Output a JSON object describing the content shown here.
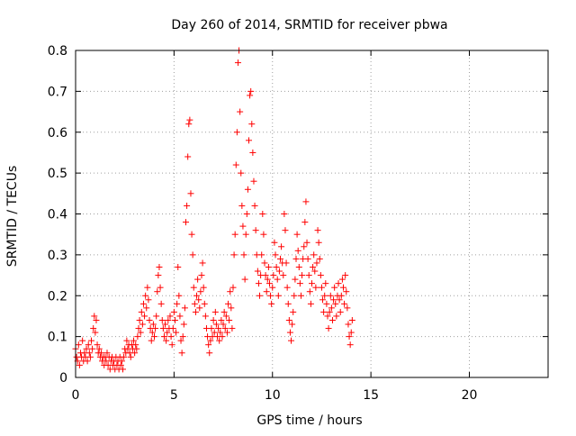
{
  "chart_data": {
    "type": "scatter",
    "title": "Day 260 of 2014, SRMTID for receiver pbwa",
    "xlabel": "GPS time / hours",
    "ylabel": "SRMTID / TECUs",
    "xlim": [
      0,
      24
    ],
    "ylim": [
      0,
      0.8
    ],
    "xticks": [
      0,
      5,
      10,
      15,
      20
    ],
    "xtick_labels": [
      "0",
      "5",
      "10",
      "15",
      "20"
    ],
    "yticks": [
      0,
      0.1,
      0.2,
      0.3,
      0.4,
      0.5,
      0.6,
      0.7,
      0.8
    ],
    "ytick_labels": [
      "0",
      "0.1",
      "0.2",
      "0.3",
      "0.4",
      "0.5",
      "0.6",
      "0.7",
      "0.8"
    ],
    "grid": true,
    "marker": "+",
    "marker_color": "#ff0000",
    "series": [
      {
        "name": "pbwa",
        "points": [
          [
            0.0,
            0.07
          ],
          [
            0.05,
            0.05
          ],
          [
            0.1,
            0.04
          ],
          [
            0.15,
            0.08
          ],
          [
            0.2,
            0.03
          ],
          [
            0.25,
            0.06
          ],
          [
            0.3,
            0.05
          ],
          [
            0.35,
            0.09
          ],
          [
            0.4,
            0.04
          ],
          [
            0.45,
            0.06
          ],
          [
            0.5,
            0.05
          ],
          [
            0.55,
            0.07
          ],
          [
            0.6,
            0.04
          ],
          [
            0.65,
            0.08
          ],
          [
            0.7,
            0.06
          ],
          [
            0.75,
            0.05
          ],
          [
            0.8,
            0.09
          ],
          [
            0.85,
            0.07
          ],
          [
            0.9,
            0.12
          ],
          [
            0.95,
            0.15
          ],
          [
            1.0,
            0.11
          ],
          [
            1.05,
            0.14
          ],
          [
            1.1,
            0.08
          ],
          [
            1.15,
            0.06
          ],
          [
            1.2,
            0.07
          ],
          [
            1.25,
            0.05
          ],
          [
            1.3,
            0.06
          ],
          [
            1.35,
            0.04
          ],
          [
            1.4,
            0.05
          ],
          [
            1.45,
            0.03
          ],
          [
            1.5,
            0.05
          ],
          [
            1.55,
            0.04
          ],
          [
            1.6,
            0.06
          ],
          [
            1.65,
            0.03
          ],
          [
            1.7,
            0.05
          ],
          [
            1.75,
            0.02
          ],
          [
            1.8,
            0.04
          ],
          [
            1.85,
            0.05
          ],
          [
            1.9,
            0.03
          ],
          [
            1.95,
            0.04
          ],
          [
            2.0,
            0.02
          ],
          [
            2.05,
            0.05
          ],
          [
            2.1,
            0.03
          ],
          [
            2.15,
            0.04
          ],
          [
            2.2,
            0.02
          ],
          [
            2.25,
            0.05
          ],
          [
            2.3,
            0.03
          ],
          [
            2.35,
            0.04
          ],
          [
            2.4,
            0.02
          ],
          [
            2.45,
            0.05
          ],
          [
            2.5,
            0.07
          ],
          [
            2.55,
            0.06
          ],
          [
            2.6,
            0.09
          ],
          [
            2.65,
            0.07
          ],
          [
            2.7,
            0.08
          ],
          [
            2.75,
            0.06
          ],
          [
            2.8,
            0.05
          ],
          [
            2.85,
            0.08
          ],
          [
            2.9,
            0.07
          ],
          [
            2.95,
            0.09
          ],
          [
            3.0,
            0.06
          ],
          [
            3.05,
            0.08
          ],
          [
            3.1,
            0.07
          ],
          [
            3.15,
            0.1
          ],
          [
            3.2,
            0.12
          ],
          [
            3.25,
            0.14
          ],
          [
            3.3,
            0.11
          ],
          [
            3.35,
            0.16
          ],
          [
            3.4,
            0.13
          ],
          [
            3.45,
            0.18
          ],
          [
            3.5,
            0.15
          ],
          [
            3.55,
            0.2
          ],
          [
            3.6,
            0.17
          ],
          [
            3.65,
            0.22
          ],
          [
            3.7,
            0.19
          ],
          [
            3.75,
            0.14
          ],
          [
            3.8,
            0.12
          ],
          [
            3.85,
            0.09
          ],
          [
            3.9,
            0.11
          ],
          [
            3.95,
            0.13
          ],
          [
            4.0,
            0.1
          ],
          [
            4.05,
            0.12
          ],
          [
            4.1,
            0.15
          ],
          [
            4.15,
            0.21
          ],
          [
            4.2,
            0.25
          ],
          [
            4.25,
            0.27
          ],
          [
            4.3,
            0.22
          ],
          [
            4.35,
            0.18
          ],
          [
            4.4,
            0.14
          ],
          [
            4.45,
            0.12
          ],
          [
            4.5,
            0.1
          ],
          [
            4.55,
            0.13
          ],
          [
            4.6,
            0.09
          ],
          [
            4.65,
            0.11
          ],
          [
            4.7,
            0.14
          ],
          [
            4.75,
            0.12
          ],
          [
            4.8,
            0.15
          ],
          [
            4.85,
            0.1
          ],
          [
            4.9,
            0.08
          ],
          [
            4.95,
            0.12
          ],
          [
            5.0,
            0.16
          ],
          [
            5.05,
            0.14
          ],
          [
            5.1,
            0.11
          ],
          [
            5.15,
            0.18
          ],
          [
            5.2,
            0.27
          ],
          [
            5.25,
            0.2
          ],
          [
            5.3,
            0.15
          ],
          [
            5.35,
            0.09
          ],
          [
            5.4,
            0.06
          ],
          [
            5.45,
            0.1
          ],
          [
            5.5,
            0.13
          ],
          [
            5.55,
            0.17
          ],
          [
            5.6,
            0.38
          ],
          [
            5.65,
            0.42
          ],
          [
            5.7,
            0.54
          ],
          [
            5.75,
            0.62
          ],
          [
            5.8,
            0.63
          ],
          [
            5.85,
            0.45
          ],
          [
            5.9,
            0.35
          ],
          [
            5.95,
            0.3
          ],
          [
            6.0,
            0.22
          ],
          [
            6.05,
            0.18
          ],
          [
            6.1,
            0.16
          ],
          [
            6.15,
            0.2
          ],
          [
            6.2,
            0.24
          ],
          [
            6.25,
            0.19
          ],
          [
            6.3,
            0.17
          ],
          [
            6.35,
            0.21
          ],
          [
            6.4,
            0.25
          ],
          [
            6.45,
            0.28
          ],
          [
            6.5,
            0.22
          ],
          [
            6.55,
            0.18
          ],
          [
            6.6,
            0.15
          ],
          [
            6.65,
            0.12
          ],
          [
            6.7,
            0.1
          ],
          [
            6.75,
            0.08
          ],
          [
            6.8,
            0.06
          ],
          [
            6.85,
            0.09
          ],
          [
            6.9,
            0.12
          ],
          [
            6.95,
            0.1
          ],
          [
            7.0,
            0.14
          ],
          [
            7.05,
            0.11
          ],
          [
            7.1,
            0.16
          ],
          [
            7.15,
            0.13
          ],
          [
            7.2,
            0.1
          ],
          [
            7.25,
            0.12
          ],
          [
            7.3,
            0.09
          ],
          [
            7.35,
            0.11
          ],
          [
            7.4,
            0.14
          ],
          [
            7.45,
            0.1
          ],
          [
            7.5,
            0.13
          ],
          [
            7.55,
            0.16
          ],
          [
            7.6,
            0.12
          ],
          [
            7.65,
            0.15
          ],
          [
            7.7,
            0.11
          ],
          [
            7.75,
            0.18
          ],
          [
            7.8,
            0.14
          ],
          [
            7.85,
            0.21
          ],
          [
            7.9,
            0.17
          ],
          [
            7.95,
            0.12
          ],
          [
            8.0,
            0.22
          ],
          [
            8.05,
            0.3
          ],
          [
            8.1,
            0.35
          ],
          [
            8.15,
            0.52
          ],
          [
            8.2,
            0.6
          ],
          [
            8.25,
            0.77
          ],
          [
            8.3,
            0.8
          ],
          [
            8.35,
            0.65
          ],
          [
            8.4,
            0.5
          ],
          [
            8.45,
            0.42
          ],
          [
            8.5,
            0.37
          ],
          [
            8.55,
            0.3
          ],
          [
            8.6,
            0.24
          ],
          [
            8.65,
            0.35
          ],
          [
            8.7,
            0.4
          ],
          [
            8.75,
            0.46
          ],
          [
            8.8,
            0.58
          ],
          [
            8.85,
            0.69
          ],
          [
            8.9,
            0.7
          ],
          [
            8.95,
            0.62
          ],
          [
            9.0,
            0.55
          ],
          [
            9.05,
            0.48
          ],
          [
            9.1,
            0.42
          ],
          [
            9.15,
            0.36
          ],
          [
            9.2,
            0.3
          ],
          [
            9.25,
            0.26
          ],
          [
            9.3,
            0.23
          ],
          [
            9.35,
            0.2
          ],
          [
            9.4,
            0.25
          ],
          [
            9.45,
            0.3
          ],
          [
            9.5,
            0.4
          ],
          [
            9.55,
            0.35
          ],
          [
            9.6,
            0.28
          ],
          [
            9.65,
            0.25
          ],
          [
            9.7,
            0.21
          ],
          [
            9.75,
            0.24
          ],
          [
            9.8,
            0.27
          ],
          [
            9.85,
            0.23
          ],
          [
            9.9,
            0.2
          ],
          [
            9.95,
            0.18
          ],
          [
            10.0,
            0.22
          ],
          [
            10.05,
            0.25
          ],
          [
            10.1,
            0.33
          ],
          [
            10.15,
            0.3
          ],
          [
            10.2,
            0.27
          ],
          [
            10.25,
            0.24
          ],
          [
            10.3,
            0.2
          ],
          [
            10.35,
            0.26
          ],
          [
            10.4,
            0.29
          ],
          [
            10.45,
            0.32
          ],
          [
            10.5,
            0.28
          ],
          [
            10.55,
            0.25
          ],
          [
            10.6,
            0.4
          ],
          [
            10.65,
            0.36
          ],
          [
            10.7,
            0.28
          ],
          [
            10.75,
            0.22
          ],
          [
            10.8,
            0.18
          ],
          [
            10.85,
            0.14
          ],
          [
            10.9,
            0.11
          ],
          [
            10.95,
            0.09
          ],
          [
            11.0,
            0.13
          ],
          [
            11.05,
            0.16
          ],
          [
            11.1,
            0.2
          ],
          [
            11.15,
            0.24
          ],
          [
            11.2,
            0.29
          ],
          [
            11.25,
            0.35
          ],
          [
            11.3,
            0.31
          ],
          [
            11.35,
            0.27
          ],
          [
            11.4,
            0.23
          ],
          [
            11.45,
            0.2
          ],
          [
            11.5,
            0.25
          ],
          [
            11.55,
            0.29
          ],
          [
            11.6,
            0.32
          ],
          [
            11.65,
            0.38
          ],
          [
            11.7,
            0.43
          ],
          [
            11.75,
            0.33
          ],
          [
            11.8,
            0.29
          ],
          [
            11.85,
            0.25
          ],
          [
            11.9,
            0.21
          ],
          [
            11.95,
            0.18
          ],
          [
            12.0,
            0.23
          ],
          [
            12.05,
            0.27
          ],
          [
            12.1,
            0.3
          ],
          [
            12.15,
            0.26
          ],
          [
            12.2,
            0.22
          ],
          [
            12.25,
            0.28
          ],
          [
            12.3,
            0.36
          ],
          [
            12.35,
            0.33
          ],
          [
            12.4,
            0.29
          ],
          [
            12.45,
            0.25
          ],
          [
            12.5,
            0.22
          ],
          [
            12.55,
            0.19
          ],
          [
            12.6,
            0.16
          ],
          [
            12.65,
            0.2
          ],
          [
            12.7,
            0.23
          ],
          [
            12.75,
            0.18
          ],
          [
            12.8,
            0.15
          ],
          [
            12.85,
            0.12
          ],
          [
            12.9,
            0.16
          ],
          [
            12.95,
            0.2
          ],
          [
            13.0,
            0.17
          ],
          [
            13.05,
            0.14
          ],
          [
            13.1,
            0.19
          ],
          [
            13.15,
            0.22
          ],
          [
            13.2,
            0.18
          ],
          [
            13.25,
            0.15
          ],
          [
            13.3,
            0.2
          ],
          [
            13.35,
            0.23
          ],
          [
            13.4,
            0.19
          ],
          [
            13.45,
            0.16
          ],
          [
            13.5,
            0.2
          ],
          [
            13.55,
            0.24
          ],
          [
            13.6,
            0.22
          ],
          [
            13.65,
            0.18
          ],
          [
            13.7,
            0.25
          ],
          [
            13.75,
            0.21
          ],
          [
            13.8,
            0.17
          ],
          [
            13.85,
            0.13
          ],
          [
            13.9,
            0.1
          ],
          [
            13.95,
            0.08
          ],
          [
            14.0,
            0.11
          ],
          [
            14.05,
            0.14
          ]
        ]
      }
    ]
  }
}
